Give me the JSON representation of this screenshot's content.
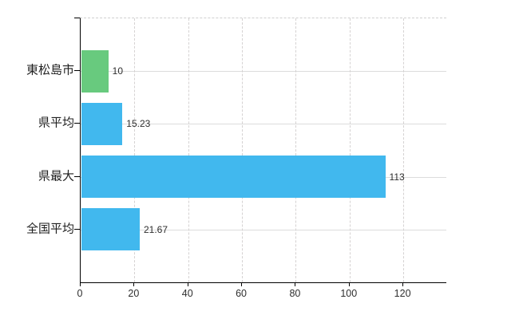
{
  "chart_data": {
    "type": "bar",
    "orientation": "horizontal",
    "title": "",
    "xlabel": "",
    "ylabel": "",
    "categories": [
      "東松島市",
      "県平均",
      "県最大",
      "全国平均"
    ],
    "values": [
      10,
      15.23,
      113,
      21.67
    ],
    "value_labels": [
      "10",
      "15.23",
      "113",
      "21.67"
    ],
    "series": [
      {
        "name": "highlight",
        "color": "#68ca7e",
        "rows": [
          0
        ]
      },
      {
        "name": "default",
        "color": "#41b8ee",
        "rows": [
          1,
          2,
          3
        ]
      }
    ],
    "bar_colors": [
      "#68ca7e",
      "#41b8ee",
      "#41b8ee",
      "#41b8ee"
    ],
    "x_ticks": [
      0,
      20,
      40,
      60,
      80,
      100,
      120
    ],
    "xlim": [
      0,
      136
    ],
    "grid": "vertical dashed at x ticks, horizontal solid at row centers",
    "legend": false
  },
  "colors": {
    "axis": "#000000",
    "grid_vertical": "#d5d2d2",
    "grid_horizontal": "#dcdcdc",
    "top_border": "#cfcfcf",
    "text": "#2e2e2e",
    "background": "#ffffff",
    "bar_green": "#68ca7e",
    "bar_blue": "#41b8ee"
  }
}
